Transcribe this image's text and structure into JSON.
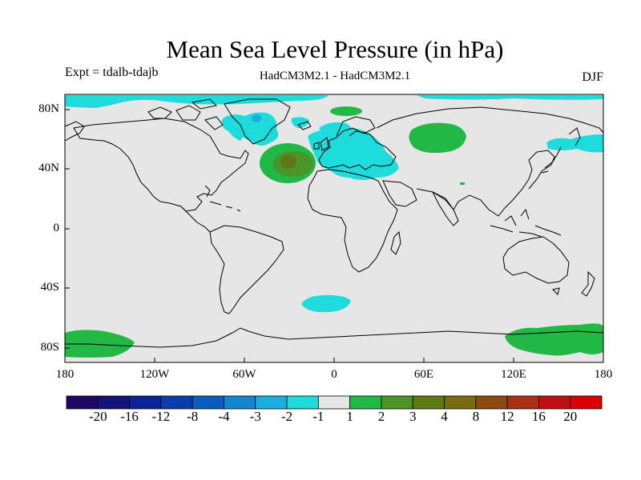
{
  "title": "Mean Sea Level Pressure (in hPa)",
  "experiment": "Expt = tdalb-tdajb",
  "models": "HadCM3M2.1 - HadCM3M2.1",
  "season": "DJF",
  "axes": {
    "y_ticks": [
      "80N",
      "40N",
      "0",
      "40S",
      "80S"
    ],
    "x_ticks": [
      "180",
      "120W",
      "60W",
      "0",
      "60E",
      "120E",
      "180"
    ]
  },
  "colorbar": {
    "labels": [
      "-20",
      "-16",
      "-12",
      "-8",
      "-4",
      "-3",
      "-2",
      "-1",
      "1",
      "2",
      "3",
      "4",
      "8",
      "12",
      "16",
      "20"
    ],
    "colors": [
      "#1e0a64",
      "#13137a",
      "#0a2496",
      "#0a3cac",
      "#0a5cbe",
      "#1286ce",
      "#1aaee0",
      "#1edcdc",
      "#e6e6e6",
      "#22b845",
      "#4a9428",
      "#5e7a14",
      "#7a6a10",
      "#8c4a10",
      "#a83014",
      "#c00e14",
      "#dc0000"
    ]
  },
  "colors": {
    "land_sea_background": "#e6e6e6",
    "coast": "#000000"
  },
  "anomaly_regions": [
    {
      "name": "Arctic band north of Canada/Greenland",
      "lon": [
        -180,
        180
      ],
      "lat": [
        86,
        82
      ],
      "level": "-1 to -2"
    },
    {
      "name": "Greenland low",
      "lon": [
        -45,
        -20
      ],
      "lat": [
        72,
        62
      ],
      "level": "-2 to -3"
    },
    {
      "name": "Europe / Mediterranean low",
      "lon": [
        -20,
        40
      ],
      "lat": [
        62,
        35
      ],
      "level": "-1 to -2"
    },
    {
      "name": "North Atlantic high",
      "lon": [
        -45,
        -20
      ],
      "lat": [
        50,
        35
      ],
      "level": "3 to 4"
    },
    {
      "name": "Siberian high",
      "lon": [
        45,
        75
      ],
      "lat": [
        67,
        55
      ],
      "level": "1 to 2"
    },
    {
      "name": "North Pacific low",
      "lon": [
        145,
        180
      ],
      "lat": [
        60,
        53
      ],
      "level": "-1 to -2"
    },
    {
      "name": "South Atlantic low",
      "lon": [
        -20,
        5
      ],
      "lat": [
        -45,
        -52
      ],
      "level": "-1 to -2"
    },
    {
      "name": "Antarctic highs",
      "lon": [
        -180,
        180
      ],
      "lat": [
        -70,
        -85
      ],
      "level": "1 to 2"
    }
  ]
}
